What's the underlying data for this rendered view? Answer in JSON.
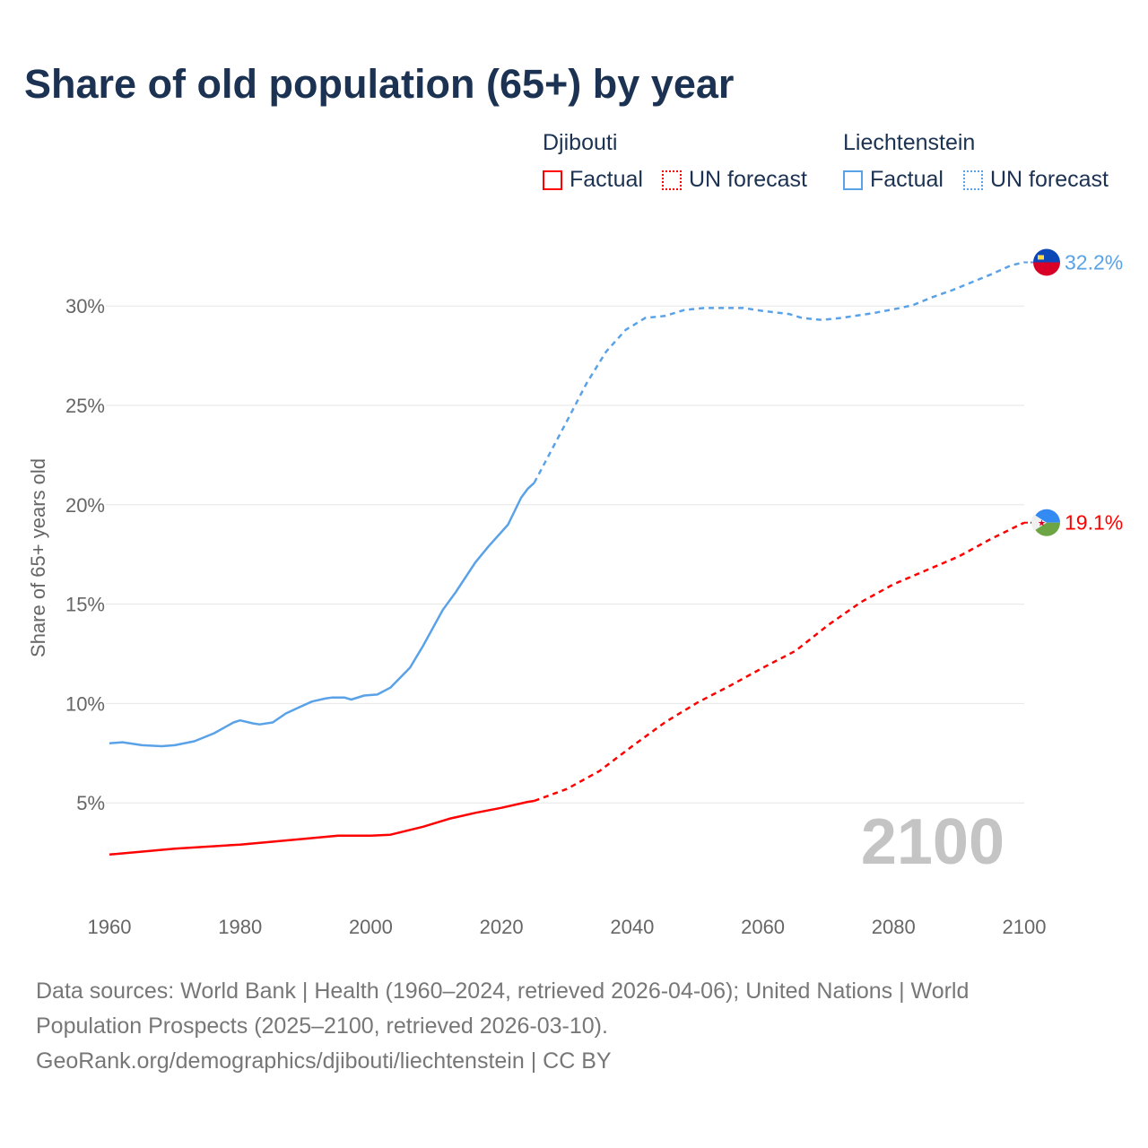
{
  "title": "Share of old population (65+) by year",
  "legend": {
    "groups": [
      {
        "name": "Djibouti",
        "color": "#ff0000",
        "factual": "Factual",
        "forecast": "UN forecast"
      },
      {
        "name": "Liechtenstein",
        "color": "#5aa2e8",
        "factual": "Factual",
        "forecast": "UN forecast"
      }
    ]
  },
  "footer": {
    "line1": "Data sources: World Bank | Health (1960–2024, retrieved 2026-04-06); United Nations | World",
    "line2": "Population Prospects (2025–2100, retrieved 2026-03-10).",
    "line3": "GeoRank.org/demographics/djibouti/liechtenstein | CC BY"
  },
  "chart_data": {
    "type": "line",
    "title": "Share of old population (65+) by year",
    "xlabel": "",
    "ylabel": "Share of 65+ years old",
    "xlim": [
      1960,
      2100
    ],
    "ylim": [
      0,
      32.5
    ],
    "xticks": [
      "1960",
      "1980",
      "2000",
      "2020",
      "2040",
      "2060",
      "2080",
      "2100"
    ],
    "yticks": [
      "5%",
      "10%",
      "15%",
      "20%",
      "25%",
      "30%"
    ],
    "year_overlay": "2100",
    "factual_end": 2025,
    "series": [
      {
        "name": "Liechtenstein",
        "color": "#5aa2e8",
        "end_label": "32.2%",
        "x": [
          1960,
          1962,
          1965,
          1968,
          1970,
          1973,
          1976,
          1979,
          1980,
          1982,
          1983,
          1985,
          1987,
          1989,
          1991,
          1993,
          1994,
          1996,
          1997,
          1999,
          2001,
          2003,
          2006,
          2008,
          2011,
          2013,
          2016,
          2018,
          2021,
          2023,
          2024,
          2025,
          2030,
          2033,
          2036,
          2039,
          2042,
          2045,
          2048,
          2051,
          2057,
          2060,
          2064,
          2066,
          2069,
          2072,
          2077,
          2081,
          2083,
          2086,
          2089,
          2092,
          2095,
          2098,
          2100
        ],
        "y": [
          8.0,
          8.05,
          7.9,
          7.85,
          7.9,
          8.1,
          8.5,
          9.05,
          9.15,
          9.0,
          8.95,
          9.05,
          9.5,
          9.8,
          10.1,
          10.25,
          10.3,
          10.3,
          10.2,
          10.4,
          10.45,
          10.8,
          11.8,
          12.9,
          14.7,
          15.6,
          17.1,
          17.9,
          19.0,
          20.35,
          20.8,
          21.1,
          24.2,
          26.1,
          27.7,
          28.8,
          29.4,
          29.5,
          29.8,
          29.9,
          29.9,
          29.75,
          29.6,
          29.4,
          29.3,
          29.4,
          29.65,
          29.9,
          30.05,
          30.45,
          30.8,
          31.2,
          31.6,
          32.05,
          32.2
        ]
      },
      {
        "name": "Djibouti",
        "color": "#ff0000",
        "end_label": "19.1%",
        "x": [
          1960,
          1970,
          1980,
          1990,
          1995,
          2000,
          2003,
          2008,
          2012,
          2016,
          2020,
          2024,
          2025,
          2030,
          2035,
          2040,
          2045,
          2050,
          2055,
          2060,
          2065,
          2070,
          2075,
          2080,
          2085,
          2090,
          2095,
          2100
        ],
        "y": [
          2.4,
          2.7,
          2.9,
          3.2,
          3.35,
          3.35,
          3.4,
          3.8,
          4.2,
          4.5,
          4.75,
          5.05,
          5.1,
          5.7,
          6.6,
          7.85,
          9.05,
          10.05,
          10.9,
          11.8,
          12.65,
          13.95,
          15.1,
          16.0,
          16.7,
          17.4,
          18.3,
          19.1
        ]
      }
    ]
  }
}
